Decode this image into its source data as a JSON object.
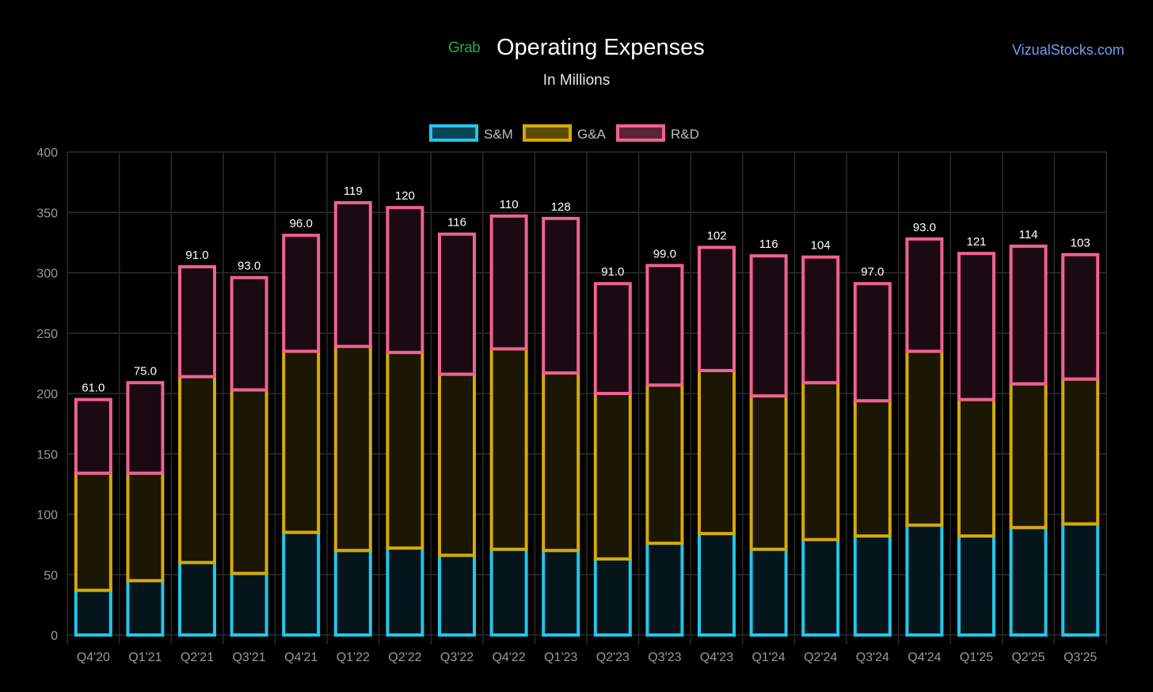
{
  "header": {
    "logo_text": "Grab",
    "title": "Operating Expenses",
    "subtitle": "In Millions",
    "site_link": "VizualStocks.com"
  },
  "chart_data": {
    "type": "bar",
    "stacked": true,
    "title": "Operating Expenses",
    "subtitle": "In Millions",
    "xlabel": "",
    "ylabel": "",
    "ylim": [
      0,
      400
    ],
    "yticks": [
      0,
      50,
      100,
      150,
      200,
      250,
      300,
      350,
      400
    ],
    "grid": true,
    "legend_position": "top-center",
    "categories": [
      "Q4'20",
      "Q1'21",
      "Q2'21",
      "Q3'21",
      "Q4'21",
      "Q1'22",
      "Q2'22",
      "Q3'22",
      "Q4'22",
      "Q1'23",
      "Q2'23",
      "Q3'23",
      "Q4'23",
      "Q1'24",
      "Q2'24",
      "Q3'24",
      "Q4'24",
      "Q1'25",
      "Q2'25",
      "Q3'25"
    ],
    "series": [
      {
        "name": "S&M",
        "stroke": "#22c7e8",
        "fill": "#04161b",
        "values": [
          37,
          45,
          60,
          51,
          85,
          70,
          72,
          66,
          71,
          70,
          63,
          76,
          84,
          71,
          79,
          82,
          91,
          82,
          89,
          92
        ]
      },
      {
        "name": "G&A",
        "stroke": "#d4aa0a",
        "fill": "#1c1604",
        "values": [
          97,
          89,
          154,
          152,
          150,
          169,
          162,
          150,
          166,
          147,
          137,
          131,
          135,
          127,
          130,
          112,
          144,
          113,
          119,
          120
        ]
      },
      {
        "name": "R&D",
        "stroke": "#f0628f",
        "fill": "#1c0a12",
        "values": [
          61,
          75,
          91,
          93,
          96,
          119,
          120,
          116,
          110,
          128,
          91,
          99,
          102,
          116,
          104,
          97,
          93,
          121,
          114,
          103
        ]
      }
    ],
    "legend_fills": [
      "#0b4452",
      "#5e4b00",
      "#5a2437"
    ]
  }
}
